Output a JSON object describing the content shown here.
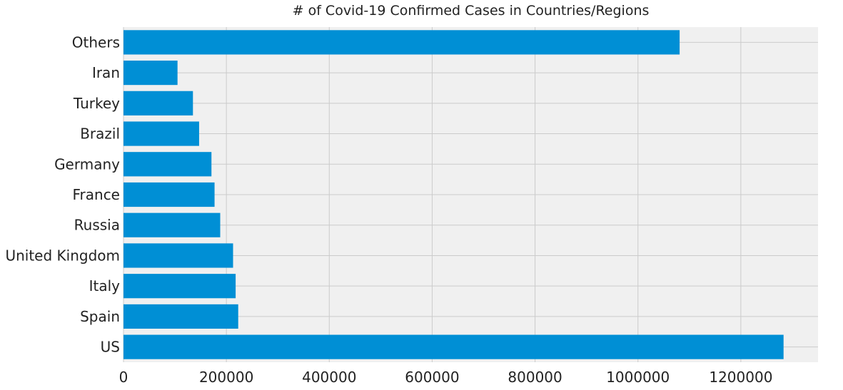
{
  "chart_data": {
    "type": "bar",
    "orientation": "horizontal",
    "title": "# of Covid-19 Confirmed Cases in Countries/Regions",
    "xlabel": "",
    "ylabel": "",
    "categories": [
      "US",
      "Spain",
      "Italy",
      "United Kingdom",
      "Russia",
      "France",
      "Germany",
      "Brazil",
      "Turkey",
      "Iran",
      "Others"
    ],
    "values": [
      1283000,
      223000,
      218000,
      213000,
      188000,
      177000,
      171000,
      147000,
      135000,
      105000,
      1081000
    ],
    "xlim": [
      0,
      1350000
    ],
    "xticks": [
      0,
      200000,
      400000,
      600000,
      800000,
      1000000,
      1200000
    ],
    "xtick_labels": [
      "0",
      "200000",
      "400000",
      "600000",
      "800000",
      "1000000",
      "1200000"
    ],
    "grid": true,
    "bar_color": "#008fd5",
    "background_color": "#f0f0f0",
    "grid_color": "#cbcbcb"
  }
}
